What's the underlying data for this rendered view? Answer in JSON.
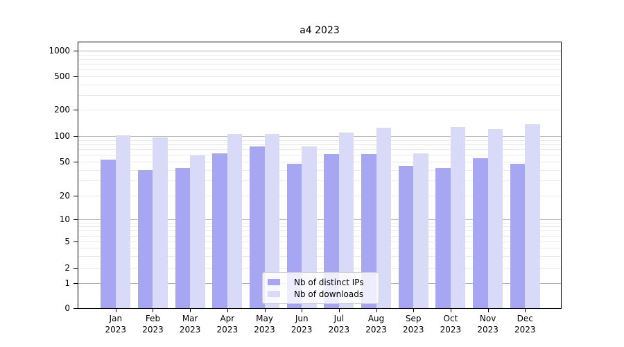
{
  "title": "a4 2023",
  "legend": {
    "items": [
      {
        "label": "Nb of distinct IPs",
        "color": "#a6a6f2"
      },
      {
        "label": "Nb of downloads",
        "color": "#d9d9f8"
      }
    ]
  },
  "chart_data": {
    "type": "bar",
    "title": "a4 2023",
    "categories": [
      "Jan",
      "Feb",
      "Mar",
      "Apr",
      "May",
      "Jun",
      "Jul",
      "Aug",
      "Sep",
      "Oct",
      "Nov",
      "Dec"
    ],
    "x_year": "2023",
    "series": [
      {
        "name": "Nb of distinct IPs",
        "color": "#a6a6f2",
        "values": [
          53,
          40,
          42,
          63,
          76,
          47,
          61,
          61,
          45,
          42,
          55,
          47
        ]
      },
      {
        "name": "Nb of downloads",
        "color": "#d9d9f8",
        "values": [
          102,
          96,
          59,
          106,
          105,
          75,
          109,
          124,
          63,
          127,
          121,
          136
        ]
      }
    ],
    "yscale": "symlog",
    "ylim": [
      0,
      1250
    ],
    "yticks": [
      0,
      1,
      2,
      5,
      10,
      20,
      50,
      100,
      200,
      500,
      1000
    ],
    "grid_major": [
      1,
      10,
      100,
      1000
    ],
    "grid_minor": [
      2,
      3,
      4,
      5,
      6,
      7,
      8,
      9,
      20,
      30,
      40,
      50,
      60,
      70,
      80,
      90,
      200,
      300,
      400,
      500,
      600,
      700,
      800,
      900
    ],
    "grid": true,
    "legend_position": "lower center"
  }
}
